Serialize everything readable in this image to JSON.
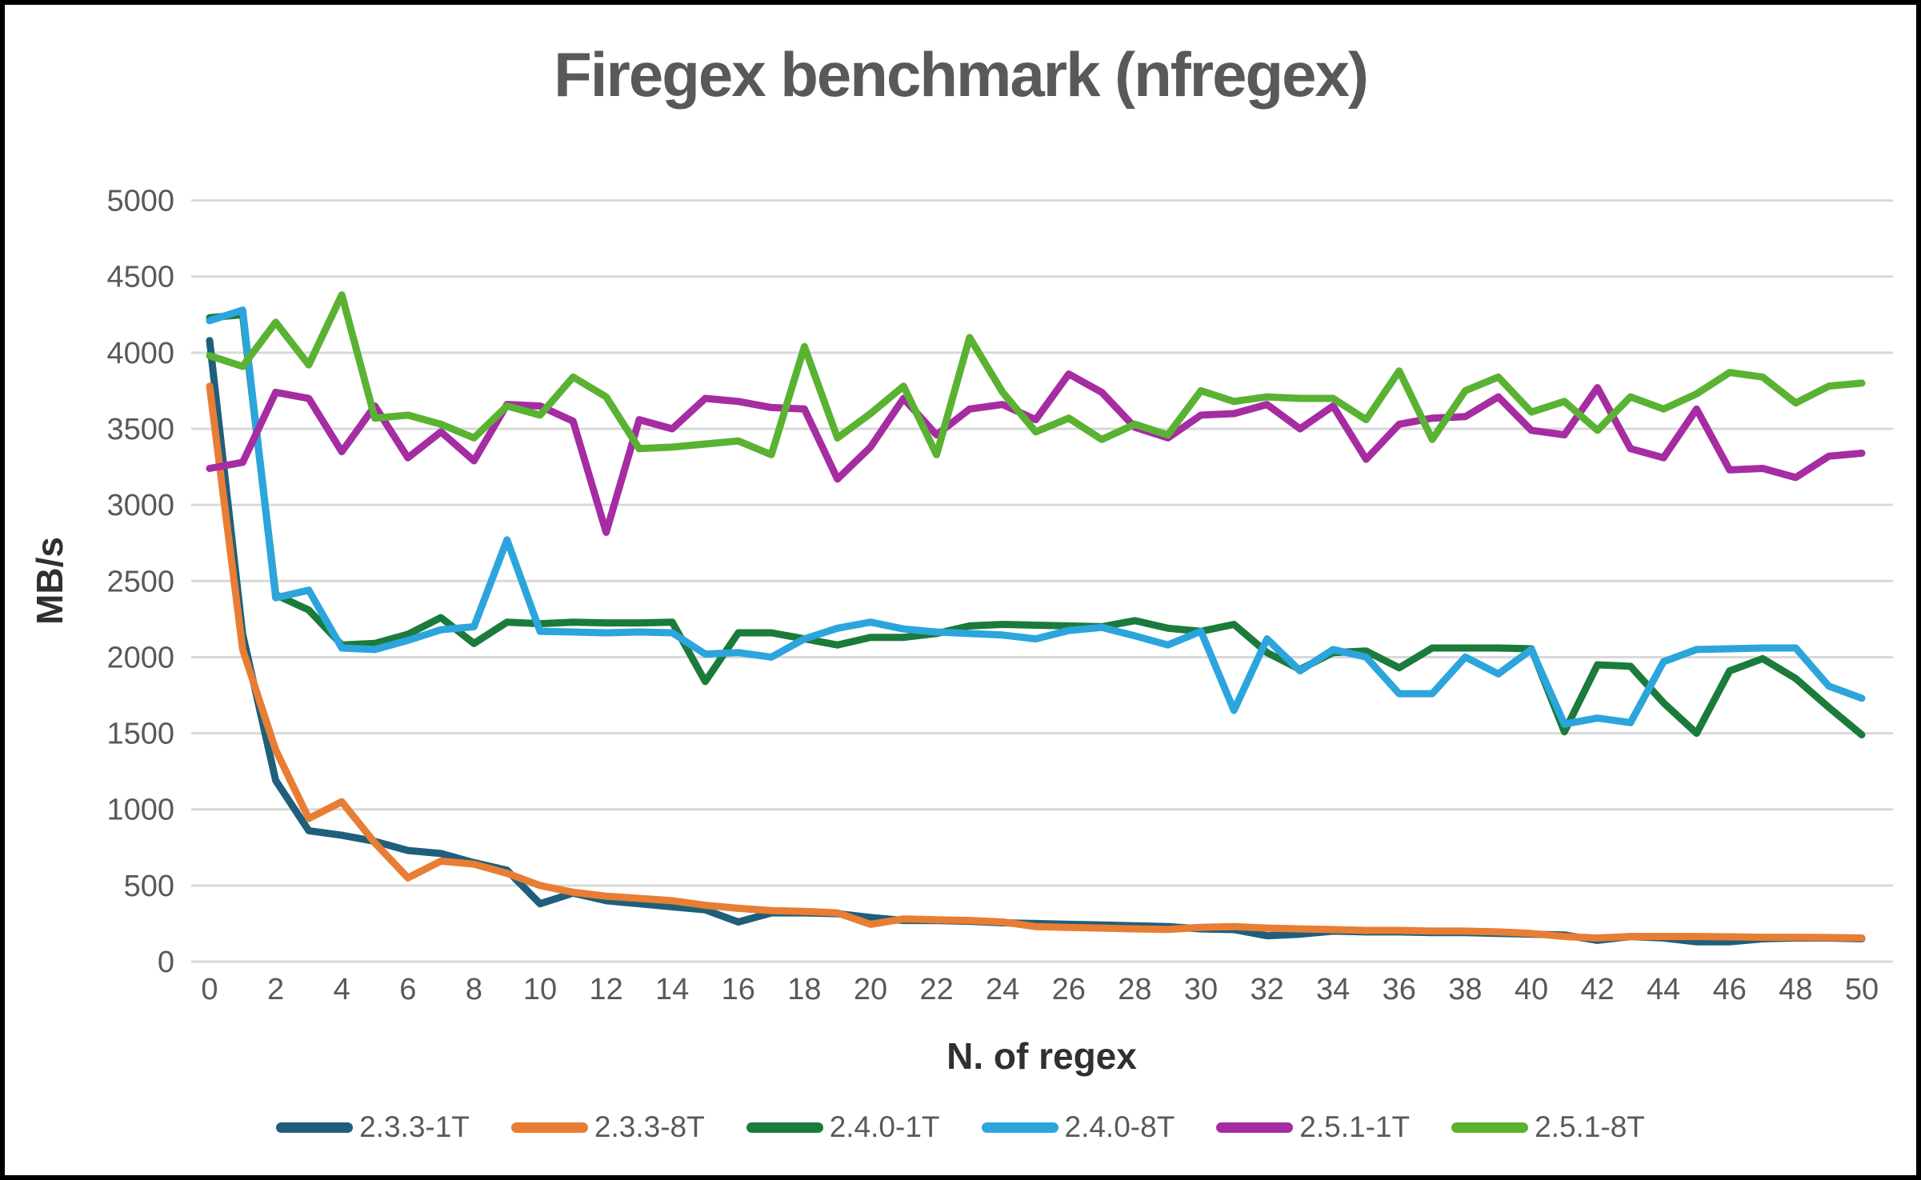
{
  "title": "Firegex benchmark (nfregex)",
  "axes": {
    "y_label": "MB/s",
    "x_label": "N. of regex"
  },
  "colors": {
    "background": "#FFFFFF",
    "frame_border": "#000000",
    "gridline": "#D9D9D9",
    "title_text": "#595959",
    "tick_text": "#595959",
    "axis_title_text": "#303030"
  },
  "chart_data": {
    "type": "line",
    "title": "Firegex benchmark (nfregex)",
    "xlabel": "N. of regex",
    "ylabel": "MB/s",
    "xlim": [
      0,
      50
    ],
    "ylim": [
      0,
      5000
    ],
    "y_ticks": [
      0,
      500,
      1000,
      1500,
      2000,
      2500,
      3000,
      3500,
      4000,
      4500,
      5000
    ],
    "x_ticks": [
      0,
      2,
      4,
      6,
      8,
      10,
      12,
      14,
      16,
      18,
      20,
      22,
      24,
      26,
      28,
      30,
      32,
      34,
      36,
      38,
      40,
      42,
      44,
      46,
      48,
      50
    ],
    "grid": "horizontal",
    "legend_position": "bottom",
    "x": [
      0,
      1,
      2,
      3,
      4,
      5,
      6,
      7,
      8,
      9,
      10,
      11,
      12,
      13,
      14,
      15,
      16,
      17,
      18,
      19,
      20,
      21,
      22,
      23,
      24,
      25,
      26,
      27,
      28,
      29,
      30,
      31,
      32,
      33,
      34,
      35,
      36,
      37,
      38,
      39,
      40,
      41,
      42,
      43,
      44,
      45,
      46,
      47,
      48,
      49,
      50
    ],
    "series": [
      {
        "name": "2.3.3-1T",
        "color": "#1F5F7B",
        "values": [
          4080,
          2150,
          1190,
          860,
          830,
          790,
          730,
          710,
          650,
          600,
          380,
          450,
          400,
          380,
          360,
          340,
          260,
          320,
          320,
          315,
          290,
          270,
          270,
          265,
          255,
          250,
          245,
          240,
          235,
          230,
          215,
          210,
          170,
          180,
          200,
          195,
          195,
          190,
          190,
          185,
          180,
          175,
          140,
          165,
          155,
          130,
          130,
          150,
          155,
          155,
          150
        ]
      },
      {
        "name": "2.3.3-8T",
        "color": "#E87D34",
        "values": [
          3780,
          2050,
          1390,
          940,
          1050,
          780,
          550,
          660,
          640,
          580,
          500,
          455,
          430,
          415,
          400,
          370,
          350,
          335,
          330,
          320,
          245,
          280,
          275,
          270,
          260,
          230,
          225,
          220,
          215,
          212,
          225,
          230,
          220,
          215,
          210,
          205,
          205,
          200,
          200,
          195,
          185,
          165,
          155,
          165,
          165,
          165,
          163,
          160,
          160,
          158,
          155
        ]
      },
      {
        "name": "2.4.0-1T",
        "color": "#1B7B3B",
        "values": [
          4230,
          4250,
          2410,
          2310,
          2080,
          2090,
          2150,
          2260,
          2090,
          2230,
          2220,
          2230,
          2225,
          2225,
          2230,
          1840,
          2160,
          2160,
          2120,
          2080,
          2130,
          2130,
          2155,
          2205,
          2215,
          2210,
          2205,
          2200,
          2240,
          2190,
          2170,
          2215,
          2030,
          1920,
          2030,
          2040,
          1930,
          2060,
          2060,
          2060,
          2055,
          1510,
          1950,
          1940,
          1700,
          1500,
          1910,
          1990,
          1860,
          1670,
          1490
        ]
      },
      {
        "name": "2.4.0-8T",
        "color": "#2CA5DC",
        "values": [
          4210,
          4280,
          2390,
          2440,
          2060,
          2050,
          2110,
          2180,
          2200,
          2770,
          2170,
          2165,
          2160,
          2165,
          2160,
          2020,
          2030,
          2000,
          2120,
          2190,
          2230,
          2185,
          2165,
          2155,
          2145,
          2120,
          2175,
          2195,
          2140,
          2080,
          2170,
          1650,
          2120,
          1910,
          2050,
          2000,
          1760,
          1760,
          2000,
          1890,
          2050,
          1560,
          1600,
          1570,
          1970,
          2050,
          2055,
          2060,
          2060,
          1810,
          1730
        ]
      },
      {
        "name": "2.5.1-1T",
        "color": "#A62CA2",
        "values": [
          3240,
          3280,
          3740,
          3700,
          3350,
          3650,
          3310,
          3480,
          3290,
          3660,
          3650,
          3550,
          2820,
          3560,
          3500,
          3700,
          3680,
          3640,
          3630,
          3170,
          3380,
          3700,
          3460,
          3630,
          3660,
          3560,
          3860,
          3740,
          3510,
          3440,
          3590,
          3600,
          3660,
          3500,
          3650,
          3300,
          3530,
          3570,
          3580,
          3710,
          3490,
          3460,
          3770,
          3370,
          3310,
          3630,
          3230,
          3240,
          3180,
          3320,
          3340
        ]
      },
      {
        "name": "2.5.1-8T",
        "color": "#5AB232",
        "values": [
          3980,
          3910,
          4200,
          3920,
          4380,
          3570,
          3590,
          3530,
          3440,
          3650,
          3590,
          3840,
          3710,
          3370,
          3380,
          3400,
          3420,
          3330,
          4040,
          3440,
          3600,
          3780,
          3330,
          4100,
          3740,
          3480,
          3570,
          3430,
          3530,
          3460,
          3750,
          3680,
          3710,
          3700,
          3700,
          3560,
          3880,
          3430,
          3750,
          3840,
          3610,
          3680,
          3490,
          3710,
          3630,
          3730,
          3870,
          3840,
          3670,
          3780,
          3800
        ]
      }
    ]
  }
}
